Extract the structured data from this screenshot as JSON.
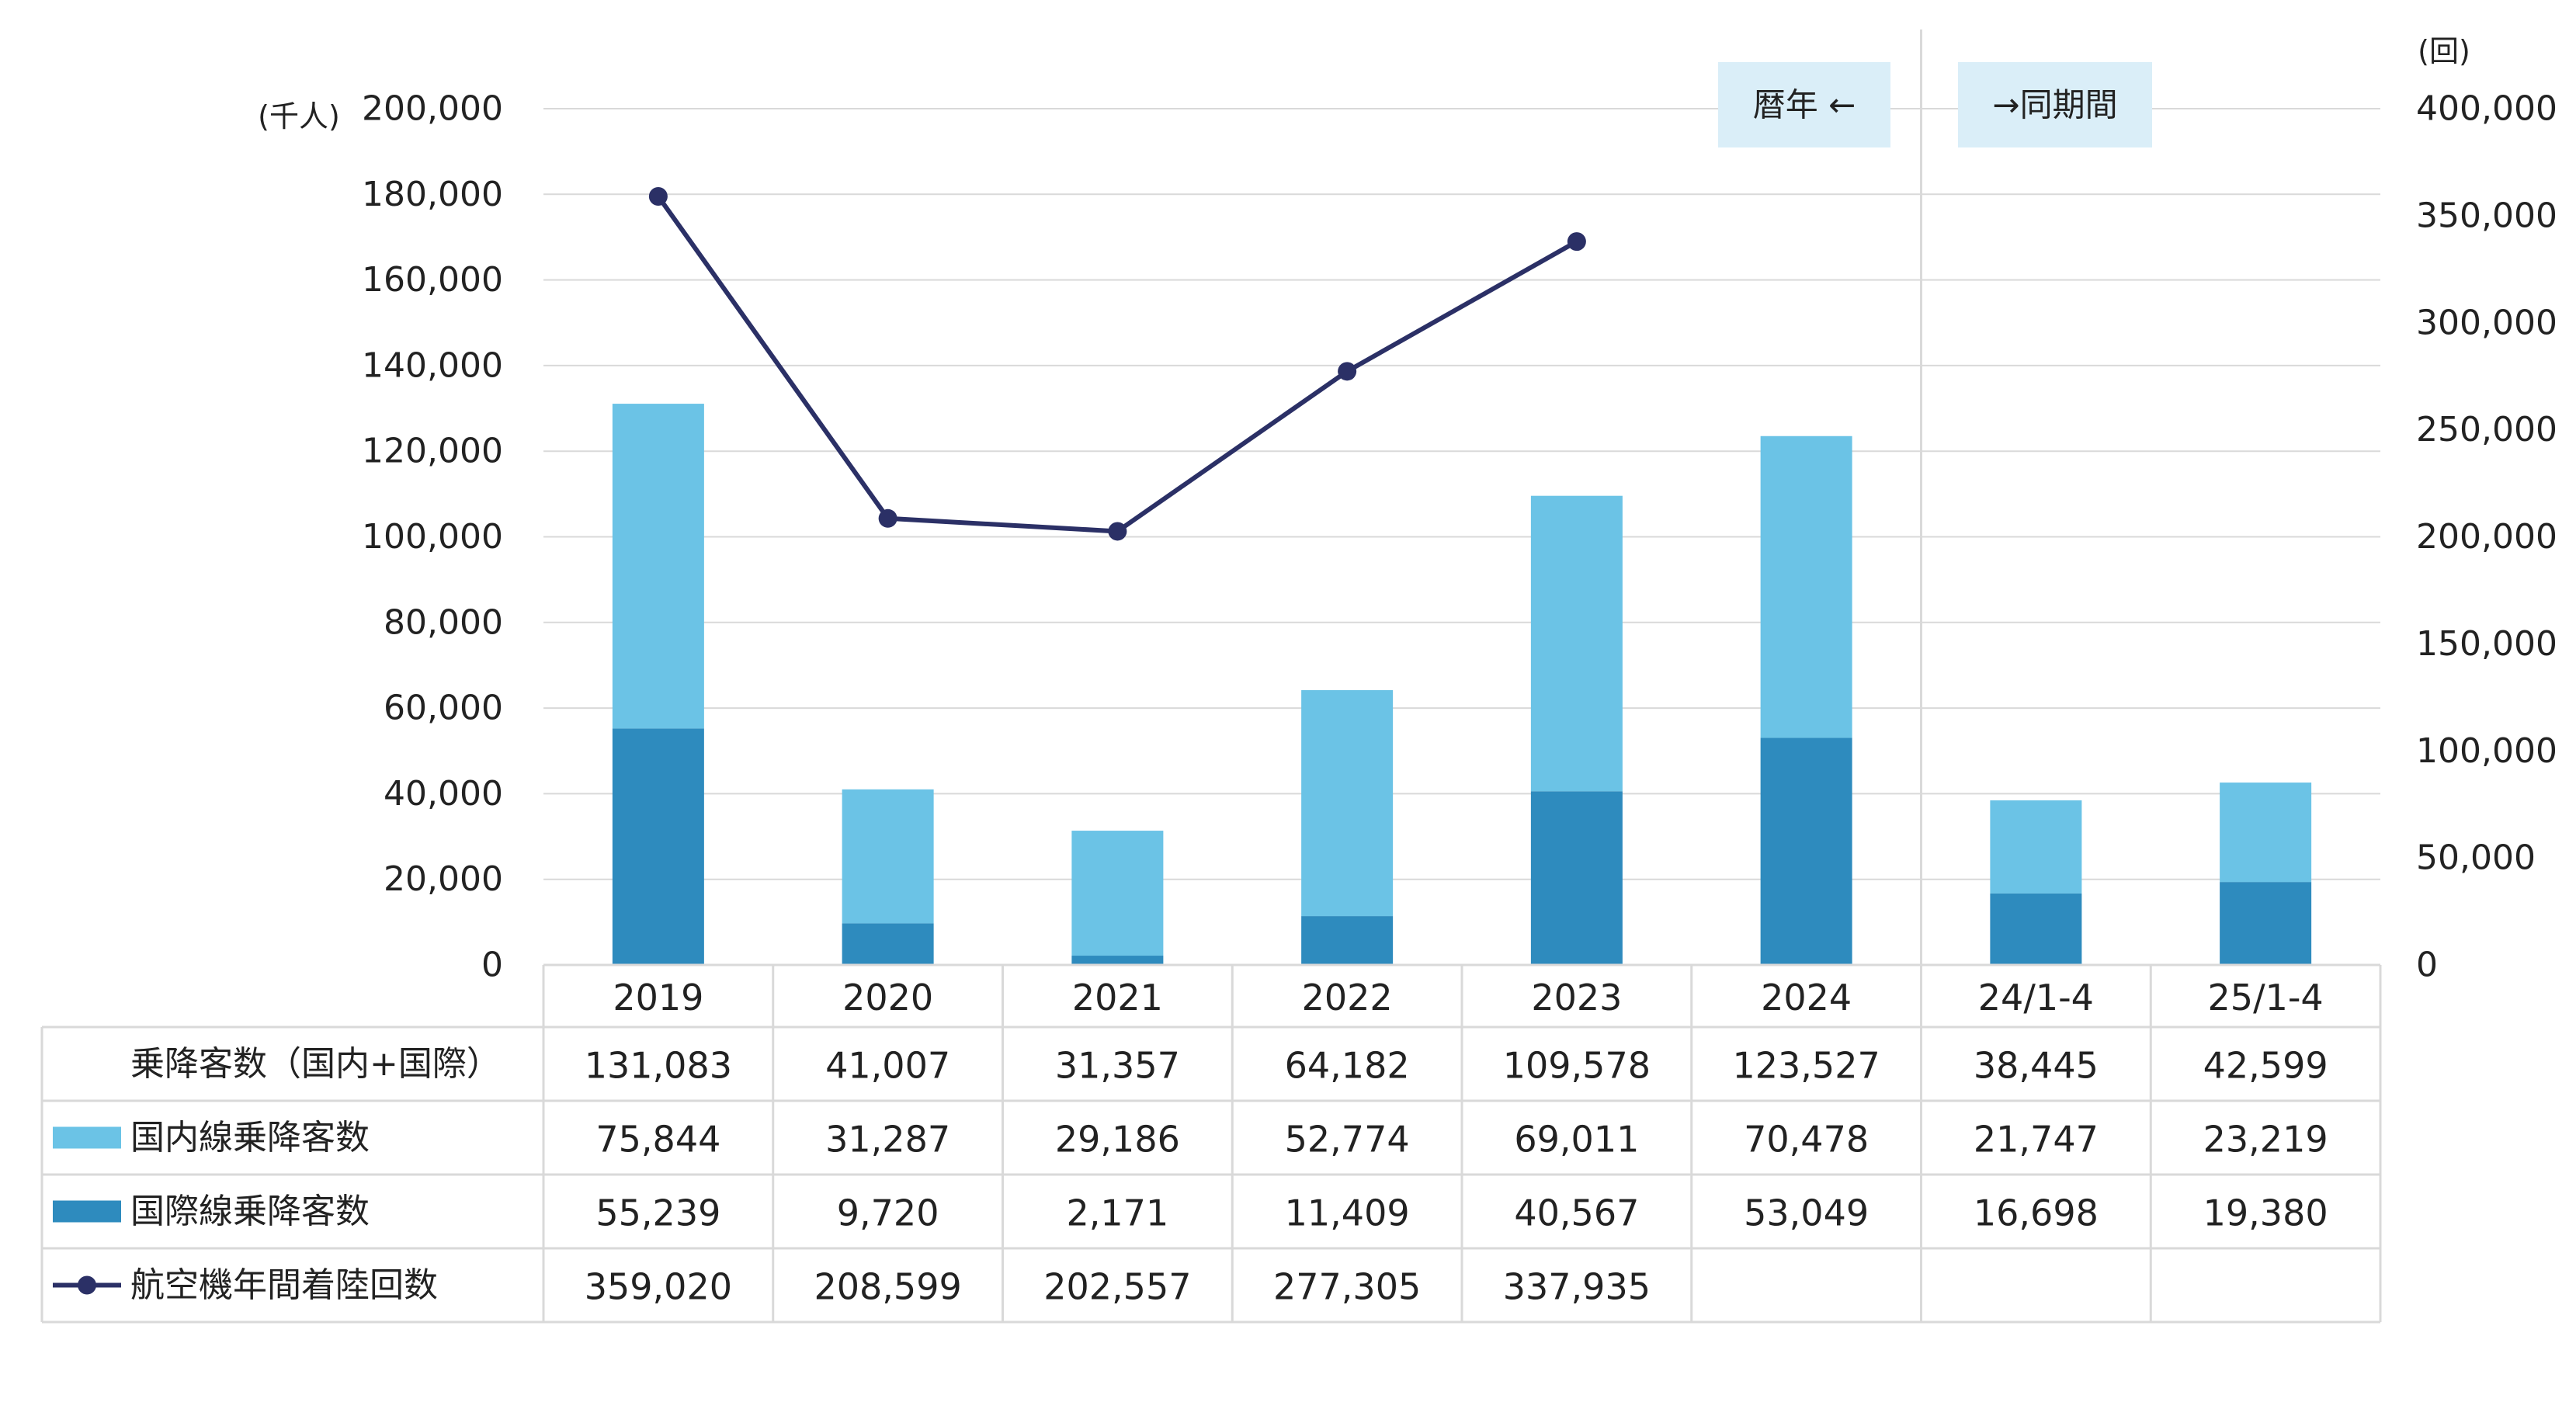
{
  "chart_data": {
    "type": "bar",
    "stacked": true,
    "left_axis": {
      "unit": "(千人)",
      "ylim": [
        0,
        200000
      ],
      "ticks": [
        "0",
        "20,000",
        "40,000",
        "60,000",
        "80,000",
        "100,000",
        "120,000",
        "140,000",
        "160,000",
        "180,000",
        "200,000"
      ]
    },
    "right_axis": {
      "unit": "(回)",
      "ylim": [
        0,
        400000
      ],
      "ticks": [
        "0",
        "50,000",
        "100,000",
        "150,000",
        "200,000",
        "250,000",
        "300,000",
        "350,000",
        "400,000"
      ]
    },
    "categories": [
      "2019",
      "2020",
      "2021",
      "2022",
      "2023",
      "2024",
      "24/1-4",
      "25/1-4"
    ],
    "period_labels": {
      "calendar": "暦年 ←",
      "same_period": "→同期間"
    },
    "grid": true,
    "series": [
      {
        "name": "国際線乗降客数",
        "type": "bar",
        "axis": "left",
        "color": "#2E8BBE",
        "values": [
          55239,
          9720,
          2171,
          11409,
          40567,
          53049,
          16698,
          19380
        ]
      },
      {
        "name": "国内線乗降客数",
        "type": "bar",
        "axis": "left",
        "color": "#6BC3E6",
        "values": [
          75844,
          31287,
          29186,
          52774,
          69011,
          70478,
          21747,
          23219
        ]
      },
      {
        "name": "航空機年間着陸回数",
        "type": "line",
        "axis": "right",
        "color": "#2B3066",
        "values": [
          359020,
          208599,
          202557,
          277305,
          337935,
          null,
          null,
          null
        ]
      }
    ],
    "data_table": {
      "rows": [
        {
          "label": "乗降客数（国内+国際）",
          "legend": "none",
          "cells": [
            "131,083",
            "41,007",
            "31,357",
            "64,182",
            "109,578",
            "123,527",
            "38,445",
            "42,599"
          ]
        },
        {
          "label": "国内線乗降客数",
          "legend": "bar-light",
          "cells": [
            "75,844",
            "31,287",
            "29,186",
            "52,774",
            "69,011",
            "70,478",
            "21,747",
            "23,219"
          ]
        },
        {
          "label": "国際線乗降客数",
          "legend": "bar-dark",
          "cells": [
            "55,239",
            "9,720",
            "2,171",
            "11,409",
            "40,567",
            "53,049",
            "16,698",
            "19,380"
          ]
        },
        {
          "label": "航空機年間着陸回数",
          "legend": "line",
          "cells": [
            "359,020",
            "208,599",
            "202,557",
            "277,305",
            "337,935",
            "",
            "",
            ""
          ]
        }
      ]
    }
  },
  "colors": {
    "grid": "#D9D9D9",
    "table_border": "#D9D9D9",
    "period_box": "#DAEEF8",
    "divider": "#D9D9D9"
  }
}
